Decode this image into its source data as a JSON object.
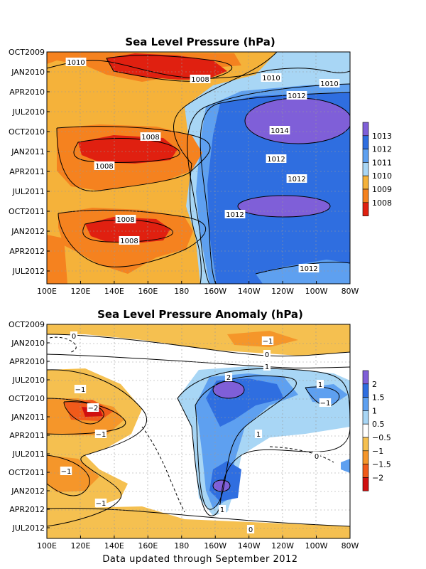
{
  "footer": "Data updated through September 2012",
  "chart_data": [
    {
      "type": "heatmap",
      "title": "Sea Level Pressure (hPa)",
      "x_ticks": [
        "100E",
        "120E",
        "140E",
        "160E",
        "180",
        "160W",
        "140W",
        "120W",
        "100W",
        "80W"
      ],
      "y_ticks": [
        "OCT2009",
        "JAN2010",
        "APR2010",
        "JUL2010",
        "OCT2010",
        "JAN2011",
        "APR2011",
        "JUL2011",
        "OCT2011",
        "JAN2012",
        "APR2012",
        "JUL2012"
      ],
      "colorbar": {
        "levels": [
          "1013",
          "1012",
          "1011",
          "1010",
          "1009",
          "1008"
        ],
        "colors": [
          "#7f5fd8",
          "#2f6ee0",
          "#5ea0f0",
          "#a8d6f5",
          "#f5b23a",
          "#f5821f",
          "#e02010"
        ]
      },
      "contour_labels": [
        "1010",
        "1008",
        "1010",
        "1010",
        "1012",
        "1014",
        "1008",
        "1008",
        "1012",
        "1012",
        "1012",
        "1008",
        "1008",
        "1012"
      ]
    },
    {
      "type": "heatmap",
      "title": "Sea Level Pressure Anomaly (hPa)",
      "x_ticks": [
        "100E",
        "120E",
        "140E",
        "160E",
        "180",
        "160W",
        "140W",
        "120W",
        "100W",
        "80W"
      ],
      "y_ticks": [
        "OCT2009",
        "JAN2010",
        "APR2010",
        "JUL2010",
        "OCT2010",
        "JAN2011",
        "APR2011",
        "JUL2011",
        "OCT2011",
        "JAN2012",
        "APR2012",
        "JUL2012"
      ],
      "colorbar": {
        "levels": [
          "2",
          "1.5",
          "1",
          "0.5",
          "−0.5",
          "−1",
          "−1.5",
          "−2"
        ],
        "colors": [
          "#7f5fd8",
          "#2f6ee0",
          "#5ea0f0",
          "#a8d6f5",
          "#ffffff",
          "#f5c050",
          "#f5962a",
          "#f05a1a",
          "#d01010"
        ]
      },
      "contour_labels": [
        "0",
        "−1",
        "0",
        "−1",
        "2",
        "1",
        "1",
        "−1",
        "−2",
        "1",
        "−1",
        "0",
        "−1",
        "−1",
        "1",
        "0"
      ]
    }
  ]
}
